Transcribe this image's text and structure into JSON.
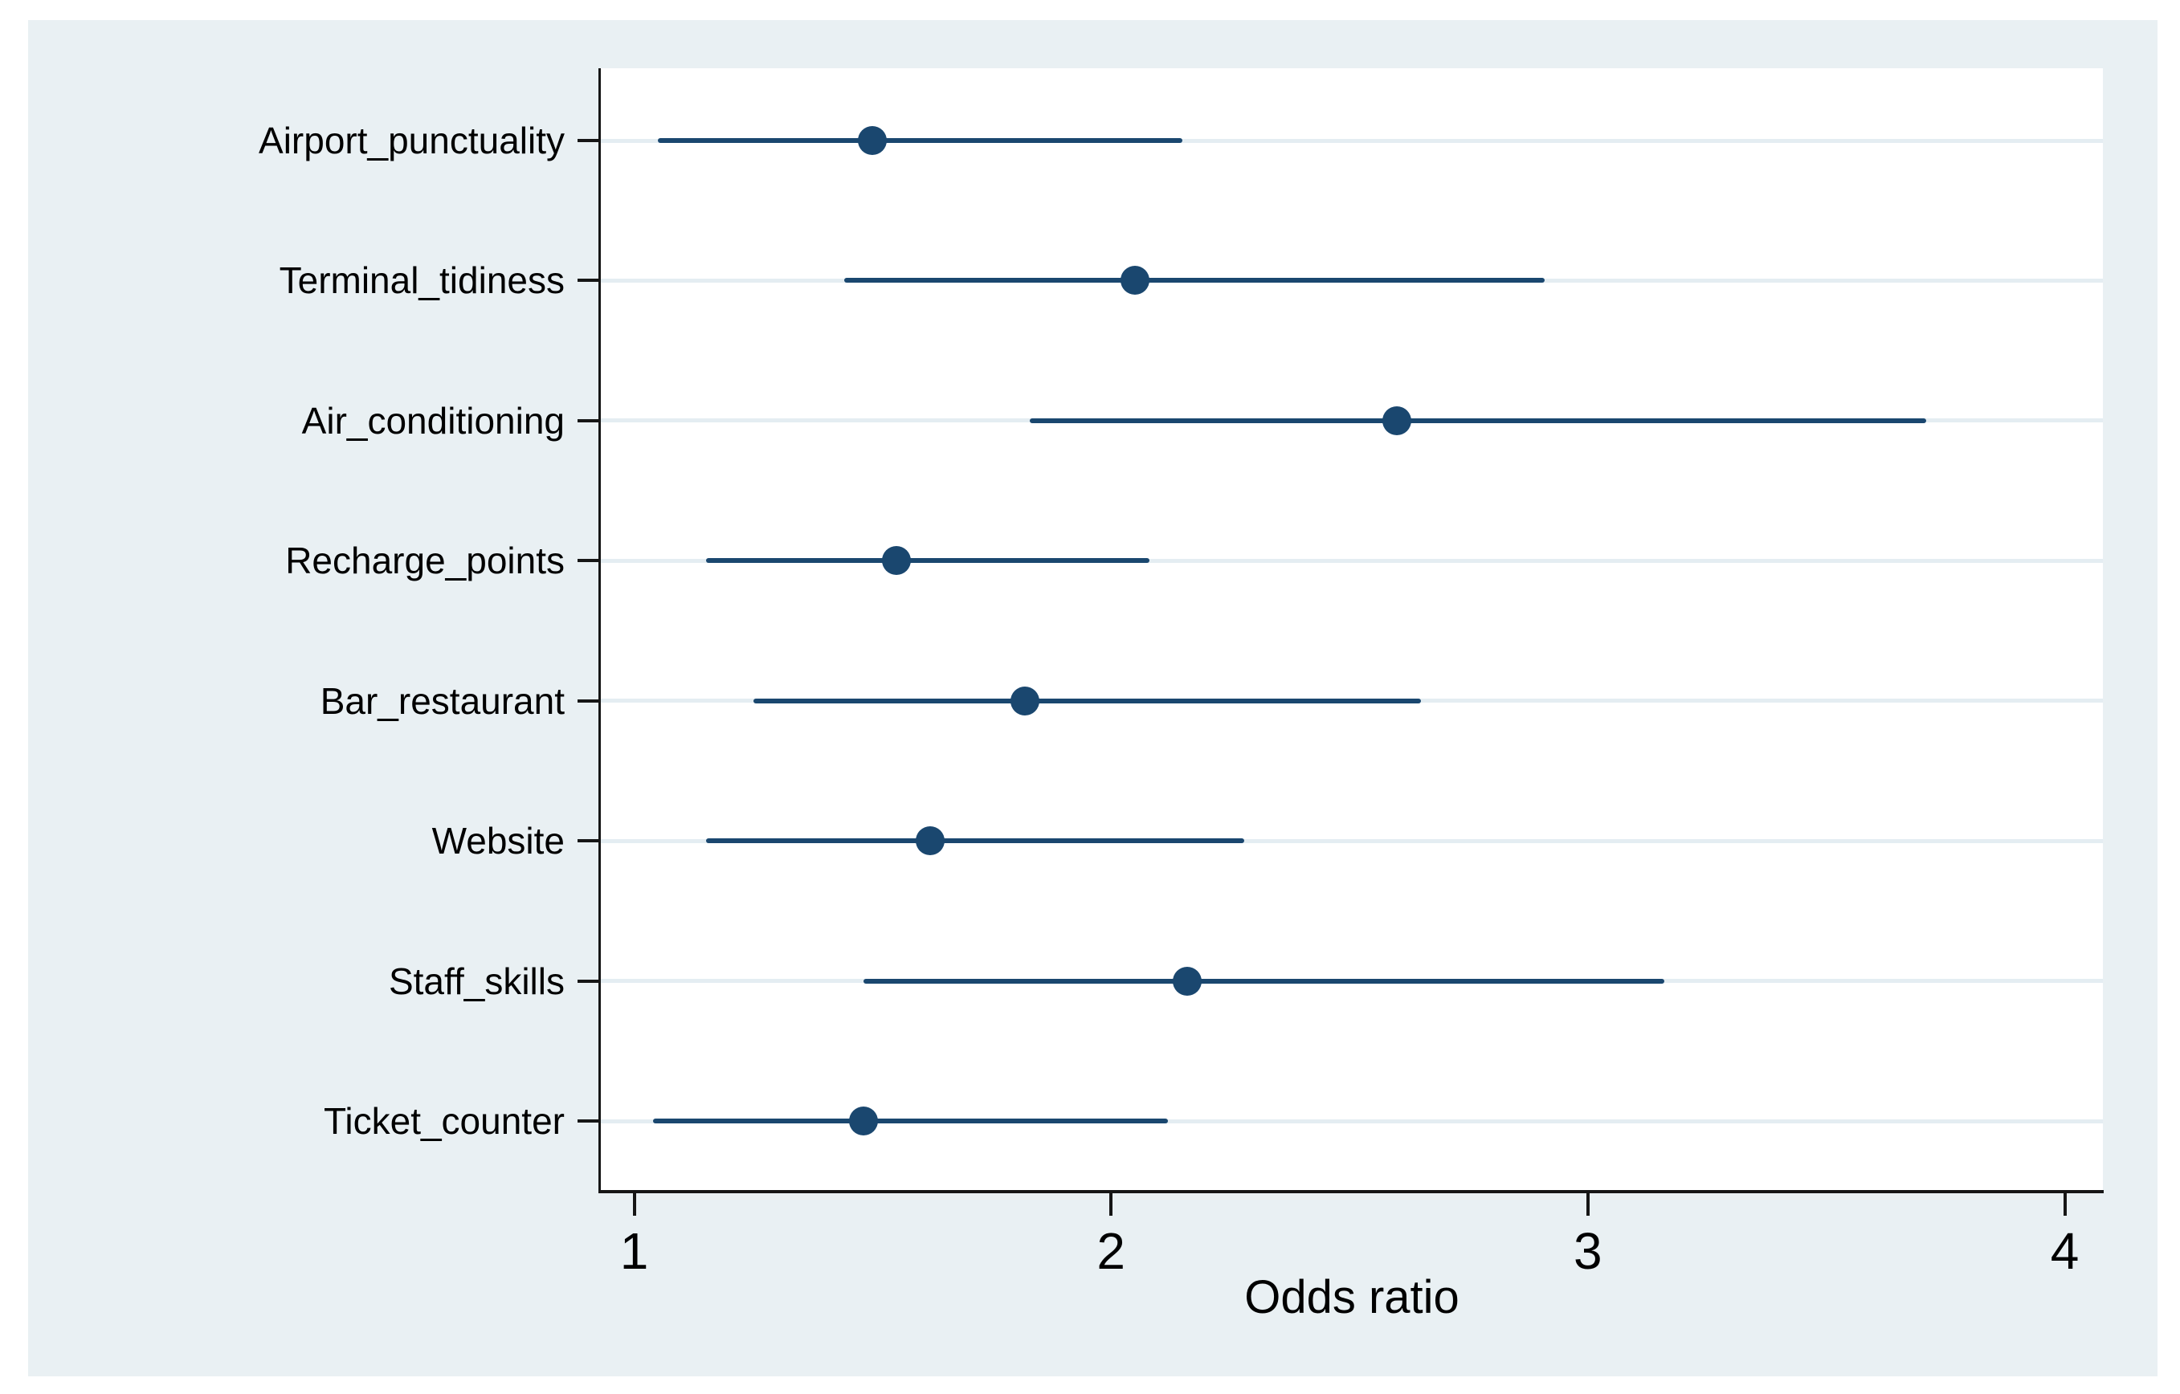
{
  "figure": {
    "background_color": "#ffffff",
    "canvas_color": "#e9f0f3",
    "plot_color": "#ffffff",
    "grid_color": "#e4edf2",
    "axis_color": "#161616",
    "text_color": "#000000",
    "marker_color": "#1a476f"
  },
  "chart_data": {
    "type": "scatter",
    "variant": "forest-plot-horizontal-ci",
    "title": "",
    "xlabel": "Odds ratio",
    "ylabel": "",
    "xlim": [
      0.93,
      4.08
    ],
    "xticks": [
      1,
      2,
      3,
      4
    ],
    "grid": true,
    "legend": "none",
    "categories": [
      "Airport_punctuality",
      "Terminal_tidiness",
      "Air_conditioning",
      "Recharge_points",
      "Bar_restaurant",
      "Website",
      "Staff_skills",
      "Ticket_counter"
    ],
    "series": [
      {
        "name": "Odds ratio",
        "values": [
          1.5,
          2.05,
          2.6,
          1.55,
          1.82,
          1.62,
          2.16,
          1.48
        ]
      },
      {
        "name": "95% CI lower",
        "values": [
          1.05,
          1.44,
          1.83,
          1.15,
          1.25,
          1.15,
          1.48,
          1.04
        ]
      },
      {
        "name": "95% CI upper",
        "values": [
          2.15,
          2.91,
          3.71,
          2.08,
          2.65,
          2.28,
          3.16,
          2.12
        ]
      }
    ]
  }
}
